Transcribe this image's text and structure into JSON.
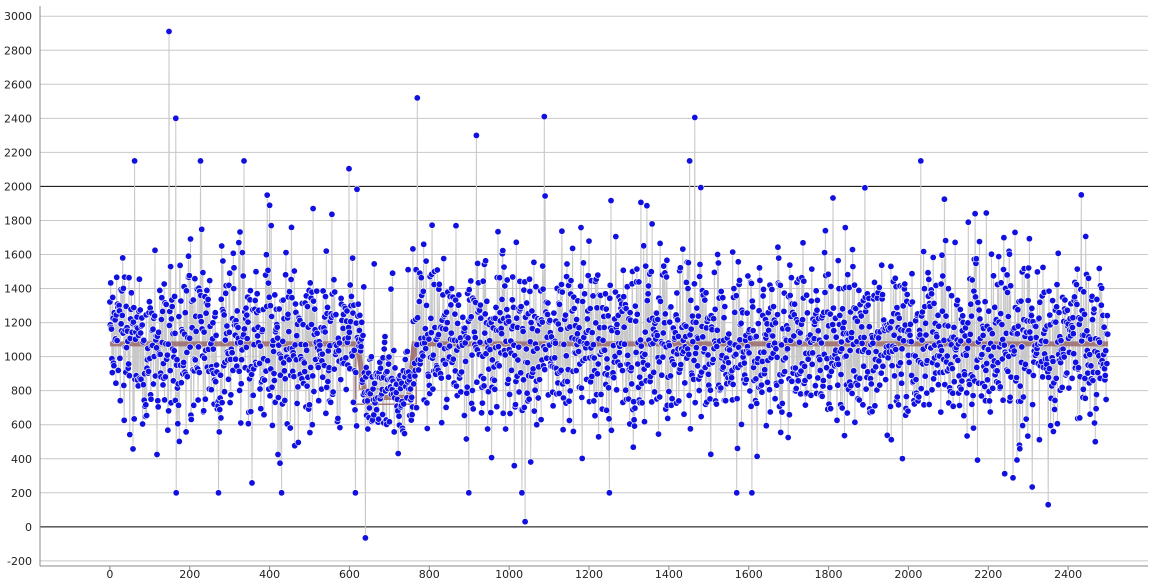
{
  "chart_data": {
    "type": "scatter",
    "title": "",
    "xlabel": "",
    "ylabel": "",
    "xlim": [
      -175,
      2600
    ],
    "ylim": [
      -230,
      3060
    ],
    "x_ticks": [
      0,
      200,
      400,
      600,
      800,
      1000,
      1200,
      1400,
      1600,
      1800,
      2000,
      2200,
      2400
    ],
    "y_ticks": [
      -200,
      0,
      200,
      400,
      600,
      800,
      1000,
      1200,
      1400,
      1600,
      1800,
      2000,
      2200,
      2400,
      2600,
      2800,
      3000
    ],
    "emphasized_gridlines_y": [
      0,
      2000
    ],
    "grid": true,
    "legend": "none",
    "n_points": 2500,
    "x_range": [
      0,
      2500
    ],
    "typical_range": [
      300,
      1900
    ],
    "baseline_level": 1075,
    "notable_points": [
      {
        "x": 148,
        "y": 2910
      },
      {
        "x": 165,
        "y": 2400
      },
      {
        "x": 770,
        "y": 2520
      },
      {
        "x": 918,
        "y": 2300
      },
      {
        "x": 1088,
        "y": 2410
      },
      {
        "x": 1465,
        "y": 2405
      },
      {
        "x": 640,
        "y": -65
      },
      {
        "x": 1040,
        "y": 30
      },
      {
        "x": 2350,
        "y": 130
      }
    ],
    "step_model": [
      {
        "x": 0,
        "y": 1075
      },
      {
        "x": 620,
        "y": 1075
      },
      {
        "x": 640,
        "y": 760
      },
      {
        "x": 748,
        "y": 760
      },
      {
        "x": 762,
        "y": 1075
      },
      {
        "x": 2500,
        "y": 1075
      }
    ],
    "series": [
      {
        "values_note": "",
        "color": "#1010e0",
        "connector_color": "#c8c8c8"
      },
      {
        "color": "#9a6a6a"
      }
    ]
  }
}
